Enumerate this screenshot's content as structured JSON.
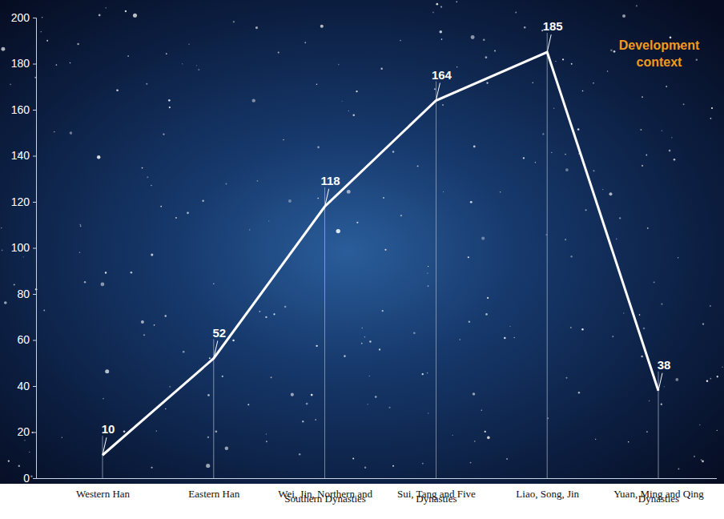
{
  "chart_data": {
    "type": "line",
    "annotation": "Development context",
    "categories": [
      "Western Han",
      "Eastern Han",
      "Wei, Jin, Northern and Southern Dynasties",
      "Sui, Tang and Five Dynasties",
      "Liao, Song, Jin",
      "Yuan, Ming and Qing Dynasties"
    ],
    "values": [
      10,
      52,
      118,
      164,
      185,
      38
    ],
    "color": "#ffffff",
    "ylim": [
      0,
      200
    ],
    "yticks": [
      0,
      20,
      40,
      60,
      80,
      100,
      120,
      140,
      160,
      180,
      200
    ],
    "grid": false,
    "data_labels": true
  }
}
